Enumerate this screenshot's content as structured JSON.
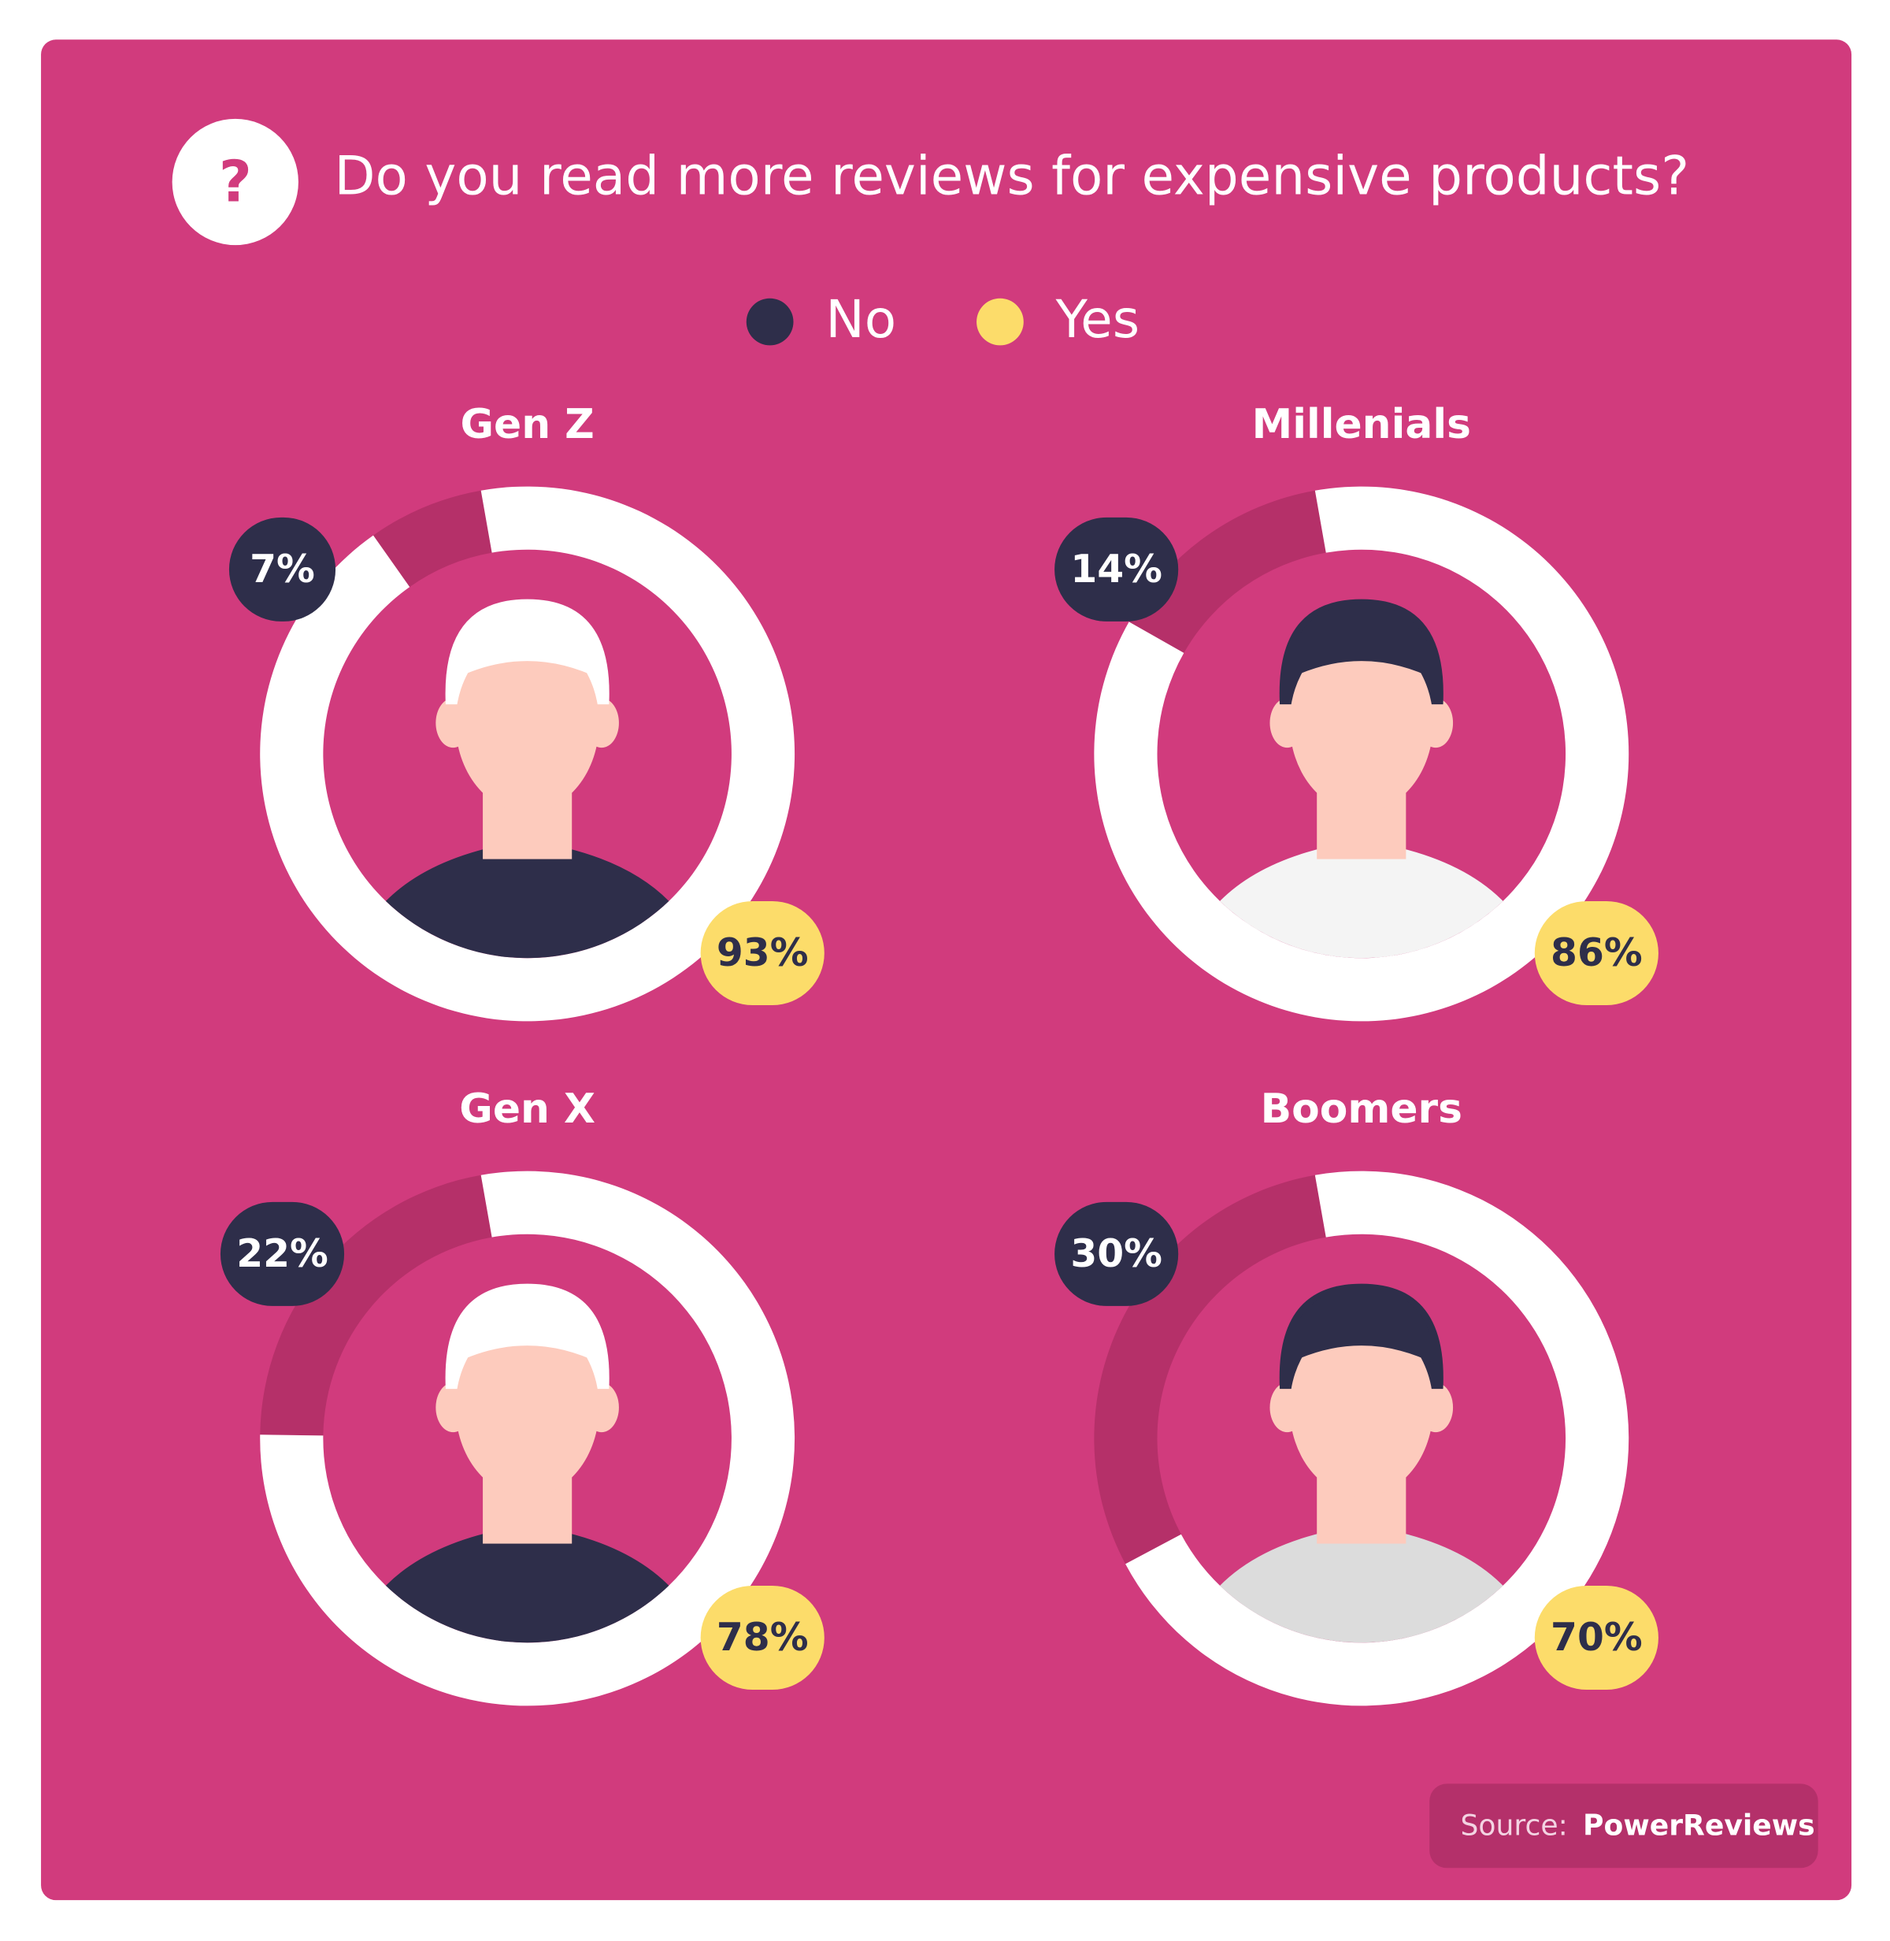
{
  "title": "Do you read more reviews for expensive products?",
  "icon": "?",
  "legend": [
    {
      "name": "No",
      "color": "#2e2e4a",
      "ring_color": "#b53069"
    },
    {
      "name": "Yes",
      "color": "#fcdc6a",
      "ring_color": "#ffffff"
    }
  ],
  "chart_data": [
    {
      "type": "donut",
      "title": "Gen Z",
      "values": [
        7,
        93
      ],
      "value_labels": [
        "7%",
        "93%"
      ]
    },
    {
      "type": "donut",
      "title": "Millenials",
      "values": [
        14,
        86
      ],
      "value_labels": [
        "14%",
        "86%"
      ]
    },
    {
      "type": "donut",
      "title": "Gen X",
      "values": [
        22,
        78
      ],
      "value_labels": [
        "22%",
        "78%"
      ]
    },
    {
      "type": "donut",
      "title": "Boomers",
      "values": [
        30,
        70
      ],
      "value_labels": [
        "30%",
        "70%"
      ]
    }
  ],
  "source": {
    "label": "Source:",
    "name": "PowerReviews"
  }
}
